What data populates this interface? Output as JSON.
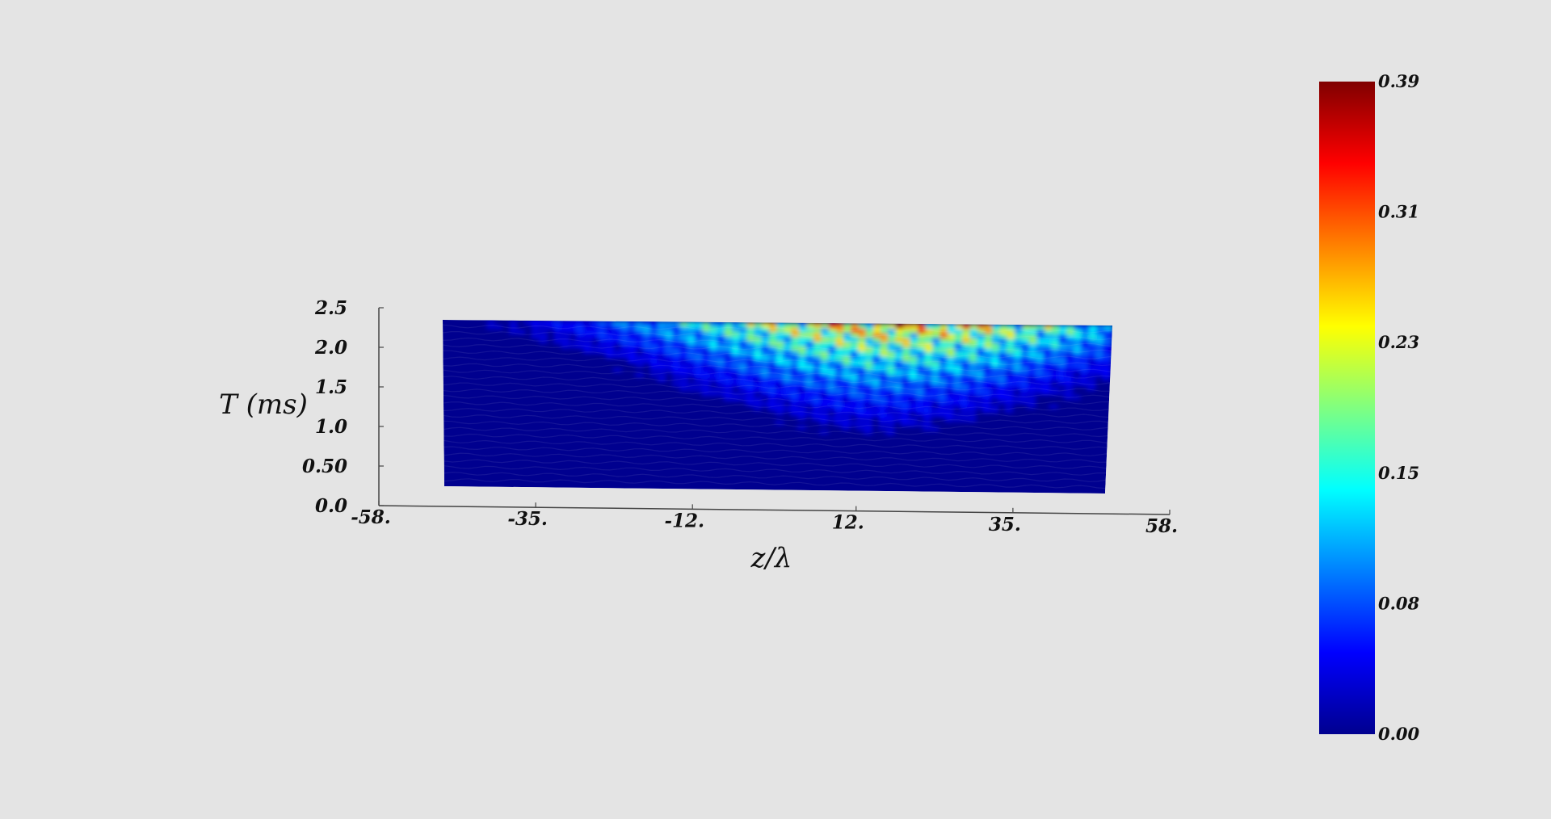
{
  "chart_data": {
    "type": "heatmap",
    "render": "3d-surface",
    "colormap": "jet",
    "xlabel": "z/λ",
    "ylabel": "T (ms)",
    "x_ticks": [
      "-58.",
      "-35.",
      "-12.",
      "12.",
      "35.",
      "58."
    ],
    "y_ticks": [
      "0.0",
      "0.50",
      "1.0",
      "1.5",
      "2.0",
      "2.5"
    ],
    "xlim": [
      -58,
      58
    ],
    "ylim": [
      0,
      2.5
    ],
    "surface_z_extent": [
      -49,
      49
    ],
    "surface_t_extent": [
      0,
      2.3
    ],
    "colorbar": {
      "ticks": [
        "0.00",
        "0.08",
        "0.15",
        "0.23",
        "0.31",
        "0.39"
      ],
      "range": [
        0,
        0.39
      ],
      "colors": [
        "#00008f",
        "#0000ff",
        "#0080ff",
        "#00ffff",
        "#80ff80",
        "#ffff00",
        "#ff8000",
        "#ff0000",
        "#800000"
      ]
    },
    "intensity_peak": {
      "z": 15,
      "t": 2.2,
      "value": 0.39
    }
  }
}
